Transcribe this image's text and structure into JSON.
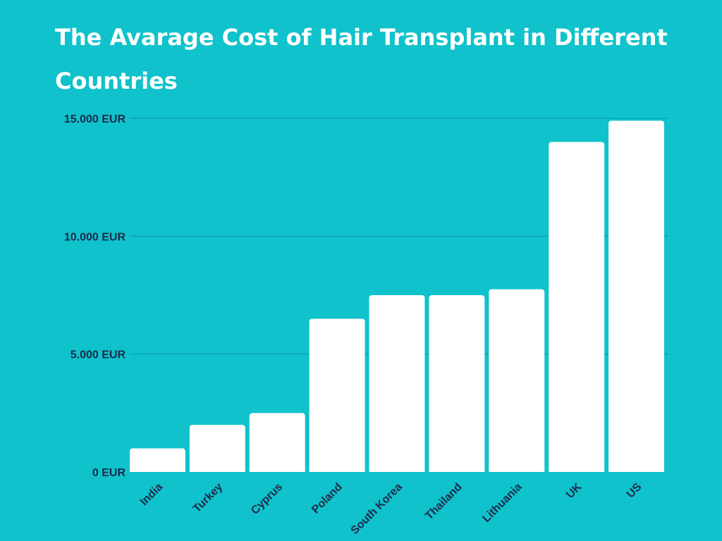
{
  "chart_data": {
    "type": "bar",
    "title": "The Avarage Cost of Hair Transplant in Different Countries",
    "xlabel": "",
    "ylabel": "",
    "categories": [
      "India",
      "Turkey",
      "Cyprus",
      "Poland",
      "South Korea",
      "Thailand",
      "Lithuania",
      "UK",
      "US"
    ],
    "values": [
      1000,
      2000,
      2500,
      6500,
      7500,
      7500,
      7750,
      14000,
      14900
    ],
    "ylim": [
      0,
      15000
    ],
    "yticks": [
      0,
      5000,
      10000,
      15000
    ],
    "ytick_labels": [
      "0 EUR",
      "5.000 EUR",
      "10.000 EUR",
      "15.000 EUR"
    ],
    "grid": true,
    "colors": {
      "background": "#0fc2cb",
      "bar": "#ffffff",
      "text": "#1e2a4a",
      "title": "#ffffff",
      "gridline": "#0a9aa3"
    }
  }
}
